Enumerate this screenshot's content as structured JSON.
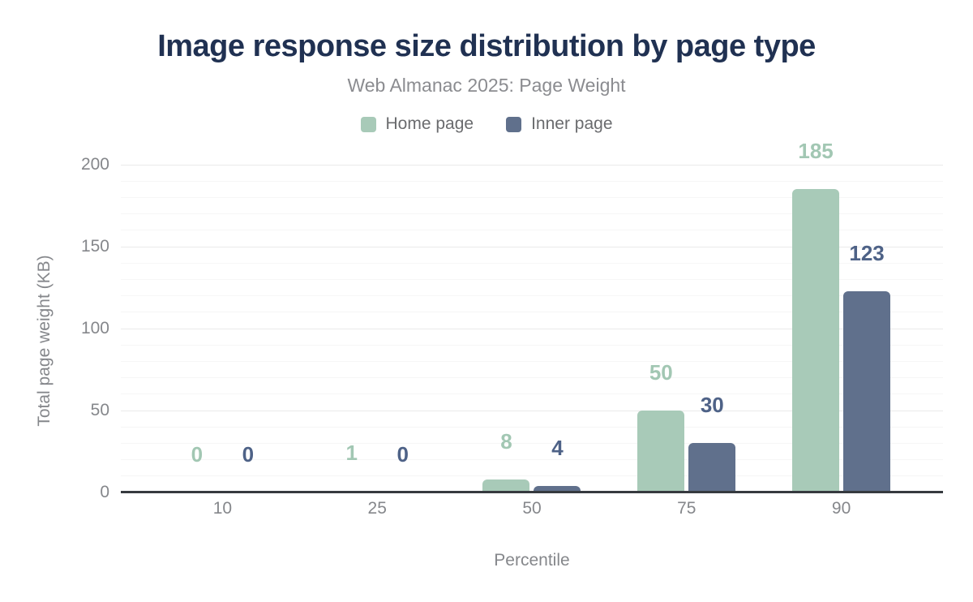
{
  "chart_data": {
    "type": "bar",
    "title": "Image response size distribution by page type",
    "subtitle": "Web Almanac 2025: Page Weight",
    "xlabel": "Percentile",
    "ylabel": "Total page weight (KB)",
    "categories": [
      "10",
      "25",
      "50",
      "75",
      "90"
    ],
    "series": [
      {
        "name": "Home page",
        "color": "#a8cab8",
        "label_color": "#a2c7b3",
        "values": [
          0,
          1,
          8,
          50,
          185
        ]
      },
      {
        "name": "Inner page",
        "color": "#60708c",
        "label_color": "#4e6287",
        "values": [
          0,
          0,
          4,
          30,
          123
        ]
      }
    ],
    "ylim": [
      0,
      200
    ],
    "yticks": [
      0,
      50,
      100,
      150,
      200
    ],
    "minor_step": 10,
    "major_step": 50,
    "grid": "horizontal major+minor, no vertical grid",
    "legend_position": "top-center",
    "colors": {
      "title": "#203152",
      "subtitle": "#8b8c90",
      "axis_text": "#85878b",
      "legend_text": "#6a6b6e",
      "major_grid": "#eaeaea",
      "minor_grid": "#f6f6f6",
      "axis_line": "#363a3f",
      "background": "#ffffff"
    }
  }
}
